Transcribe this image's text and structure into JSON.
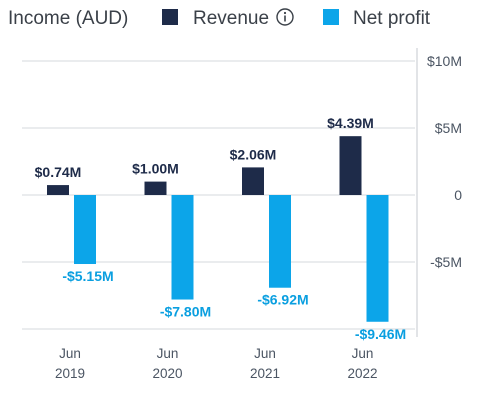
{
  "colors": {
    "revenue": "#1e2b49",
    "net_profit": "#0ca5e9",
    "net_label": "#0a9fe0",
    "grid": "#d4d8dd",
    "axis": "#c4c9cf"
  },
  "legend": {
    "info_icon": "info-icon"
  },
  "chart_data": {
    "type": "bar",
    "title": "Income (AUD)",
    "legend_position": "top",
    "grid": true,
    "y_axis_side": "right",
    "categories": [
      [
        "Jun",
        "2019"
      ],
      [
        "Jun",
        "2020"
      ],
      [
        "Jun",
        "2021"
      ],
      [
        "Jun",
        "2022"
      ]
    ],
    "series": [
      {
        "name": "Revenue",
        "values": [
          0.74,
          1.0,
          2.06,
          4.39
        ],
        "labels": [
          "$0.74M",
          "$1.00M",
          "$2.06M",
          "$4.39M"
        ]
      },
      {
        "name": "Net profit",
        "values": [
          -5.15,
          -7.8,
          -6.92,
          -9.46
        ],
        "labels": [
          "-$5.15M",
          "-$7.80M",
          "-$6.92M",
          "-$9.46M"
        ]
      }
    ],
    "yticks": [
      {
        "value": 10,
        "label": "$10M"
      },
      {
        "value": 5,
        "label": "$5M"
      },
      {
        "value": 0,
        "label": "0"
      },
      {
        "value": -5,
        "label": "-$5M"
      }
    ],
    "ylim": [
      -10,
      10
    ]
  }
}
